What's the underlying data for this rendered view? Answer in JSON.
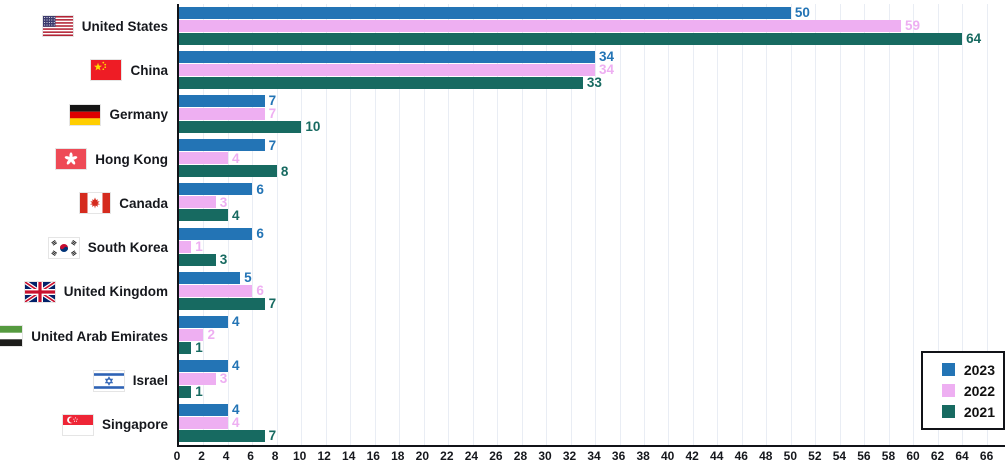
{
  "chart_data": {
    "type": "bar",
    "orientation": "horizontal",
    "title": "",
    "categories": [
      "United States",
      "China",
      "Germany",
      "Hong Kong",
      "Canada",
      "South Korea",
      "United Kingdom",
      "United Arab Emirates",
      "Israel",
      "Singapore"
    ],
    "flag_icons": [
      "us-flag-icon",
      "china-flag-icon",
      "germany-flag-icon",
      "hong-kong-flag-icon",
      "canada-flag-icon",
      "south-korea-flag-icon",
      "united-kingdom-flag-icon",
      "uae-flag-icon",
      "israel-flag-icon",
      "singapore-flag-icon"
    ],
    "series": [
      {
        "name": "2023",
        "color": "#2374b5",
        "values": [
          50,
          34,
          7,
          7,
          6,
          6,
          5,
          4,
          4,
          4
        ]
      },
      {
        "name": "2022",
        "color": "#eeaff2",
        "values": [
          59,
          34,
          7,
          4,
          3,
          1,
          6,
          2,
          3,
          4
        ]
      },
      {
        "name": "2021",
        "color": "#176a61",
        "values": [
          64,
          33,
          10,
          8,
          4,
          3,
          7,
          1,
          1,
          7
        ]
      }
    ],
    "xlim": [
      0,
      67.5
    ],
    "x_ticks": [
      0,
      2,
      4,
      6,
      8,
      10,
      12,
      14,
      16,
      18,
      20,
      22,
      24,
      26,
      28,
      30,
      32,
      34,
      36,
      38,
      40,
      42,
      44,
      46,
      48,
      50,
      52,
      54,
      56,
      58,
      60,
      62,
      64,
      66
    ],
    "grid": true,
    "legend_position": "bottom-right"
  },
  "colors": {
    "axis": "#111318",
    "gridline": "#e9edf4",
    "text": "#16181d",
    "background": "#ffffff"
  }
}
